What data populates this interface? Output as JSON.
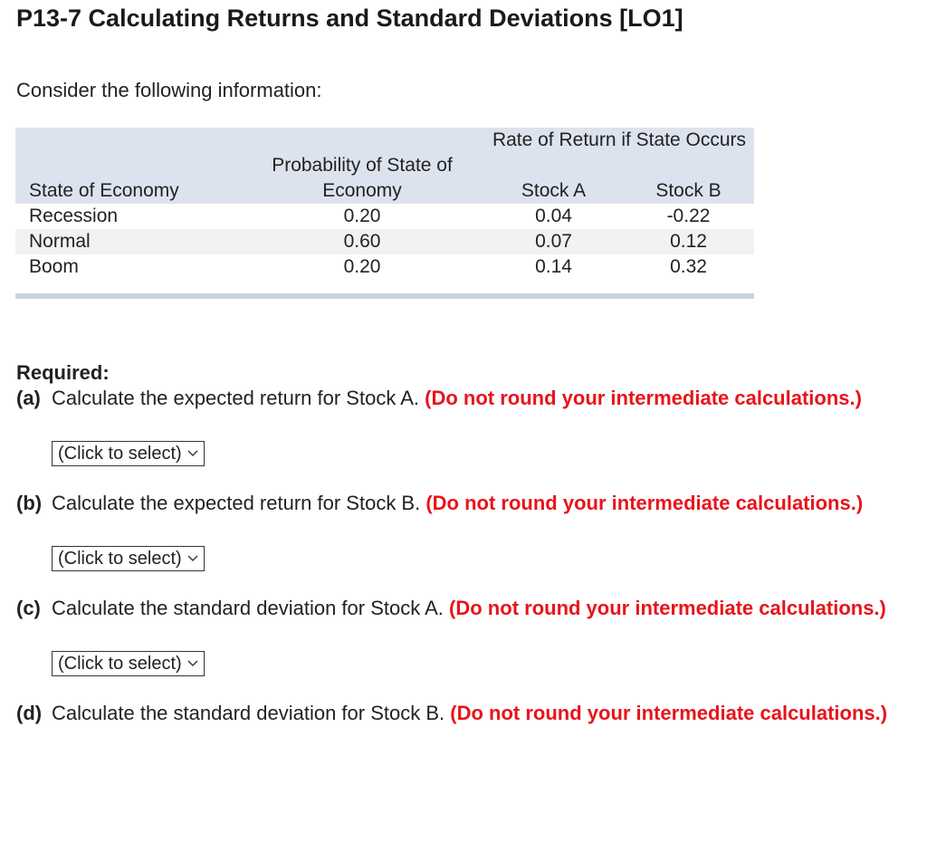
{
  "title": "P13-7 Calculating Returns and Standard Deviations [LO1]",
  "intro": "Consider the following information:",
  "table": {
    "group_header": "Rate of Return if State Occurs",
    "headers": [
      "State of Economy",
      "Probability of State of Economy",
      "Stock A",
      "Stock B"
    ],
    "rows": [
      [
        "Recession",
        "0.20",
        "0.04",
        "-0.22"
      ],
      [
        "Normal",
        "0.60",
        "0.07",
        "0.12"
      ],
      [
        "Boom",
        "0.20",
        "0.14",
        "0.32"
      ]
    ]
  },
  "required_label": "Required:",
  "questions": [
    {
      "label": "(a)",
      "text": "Calculate the expected return for Stock A.",
      "note": "(Do not round your intermediate calculations.)",
      "select": "(Click to select)"
    },
    {
      "label": "(b)",
      "text": "Calculate the expected return for Stock B.",
      "note": "(Do not round your intermediate calculations.)",
      "select": "(Click to select)"
    },
    {
      "label": "(c)",
      "text": "Calculate the standard deviation for Stock A.",
      "note": "(Do not round your intermediate calculations.)",
      "select": "(Click to select)"
    },
    {
      "label": "(d)",
      "text": "Calculate the standard deviation for Stock B.",
      "note": "(Do not round your intermediate calculations.)"
    }
  ]
}
